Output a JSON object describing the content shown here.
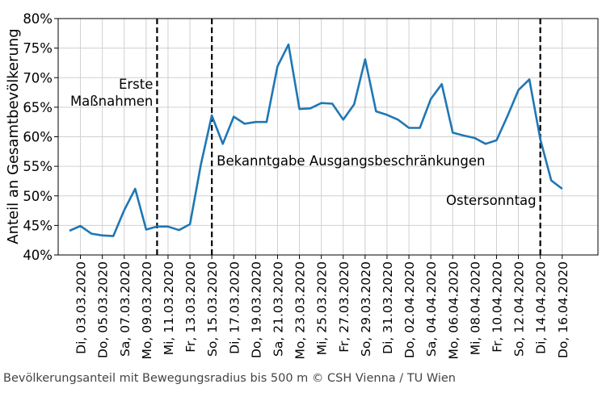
{
  "chart_data": {
    "type": "line",
    "title": "",
    "xlabel": "",
    "ylabel": "Anteil an Gesamtbevölkerung",
    "ylim": [
      40,
      80
    ],
    "yticks": [
      40,
      45,
      50,
      55,
      60,
      65,
      70,
      75,
      80
    ],
    "ytick_suffix": "%",
    "grid": true,
    "x": [
      "02.03.2020",
      "03.03.2020",
      "04.03.2020",
      "05.03.2020",
      "06.03.2020",
      "07.03.2020",
      "08.03.2020",
      "09.03.2020",
      "10.03.2020",
      "11.03.2020",
      "12.03.2020",
      "13.03.2020",
      "14.03.2020",
      "15.03.2020",
      "16.03.2020",
      "17.03.2020",
      "18.03.2020",
      "19.03.2020",
      "20.03.2020",
      "21.03.2020",
      "22.03.2020",
      "23.03.2020",
      "24.03.2020",
      "25.03.2020",
      "26.03.2020",
      "27.03.2020",
      "28.03.2020",
      "29.03.2020",
      "30.03.2020",
      "31.03.2020",
      "01.04.2020",
      "02.04.2020",
      "03.04.2020",
      "04.04.2020",
      "05.04.2020",
      "06.04.2020",
      "07.04.2020",
      "08.04.2020",
      "09.04.2020",
      "10.04.2020",
      "11.04.2020",
      "12.04.2020",
      "13.04.2020",
      "14.04.2020",
      "15.04.2020",
      "16.04.2020"
    ],
    "xtick_labels": [
      "Di, 03.03.2020",
      "Do, 05.03.2020",
      "Sa, 07.03.2020",
      "Mo, 09.03.2020",
      "Mi, 11.03.2020",
      "Fr, 13.03.2020",
      "So, 15.03.2020",
      "Di, 17.03.2020",
      "Do, 19.03.2020",
      "Sa, 21.03.2020",
      "Mo, 23.03.2020",
      "Mi, 25.03.2020",
      "Fr, 27.03.2020",
      "So, 29.03.2020",
      "Di, 31.03.2020",
      "Do, 02.04.2020",
      "Sa, 04.04.2020",
      "Mo, 06.04.2020",
      "Mi, 08.04.2020",
      "Fr, 10.04.2020",
      "So, 12.04.2020",
      "Di, 14.04.2020",
      "Do, 16.04.2020"
    ],
    "series": [
      {
        "color": "#1f77b4",
        "values": [
          44.1,
          44.9,
          43.6,
          43.3,
          43.2,
          47.6,
          51.2,
          44.3,
          44.8,
          44.8,
          44.2,
          45.2,
          55.3,
          63.6,
          58.8,
          63.4,
          62.2,
          62.5,
          62.5,
          71.9,
          75.6,
          64.7,
          64.8,
          65.7,
          65.6,
          62.9,
          65.5,
          73.1,
          64.3,
          63.7,
          62.9,
          61.5,
          61.5,
          66.4,
          68.9,
          60.7,
          60.2,
          59.8,
          58.8,
          59.4,
          63.5,
          67.9,
          69.7,
          59.6,
          52.6,
          51.2
        ]
      }
    ],
    "annotations": [
      {
        "x": "10.03.2020",
        "lines": [
          "Erste",
          "Maßnahmen"
        ]
      },
      {
        "x": "15.03.2020",
        "lines": [
          "Bekanntgabe Ausgangsbeschränkungen"
        ]
      },
      {
        "x": "14.04.2020",
        "lines": [
          "Ostersonntag"
        ]
      }
    ]
  },
  "caption": "Bevölkerungsanteil mit Bewegungsradius bis 500 m © CSH Vienna / TU Wien"
}
